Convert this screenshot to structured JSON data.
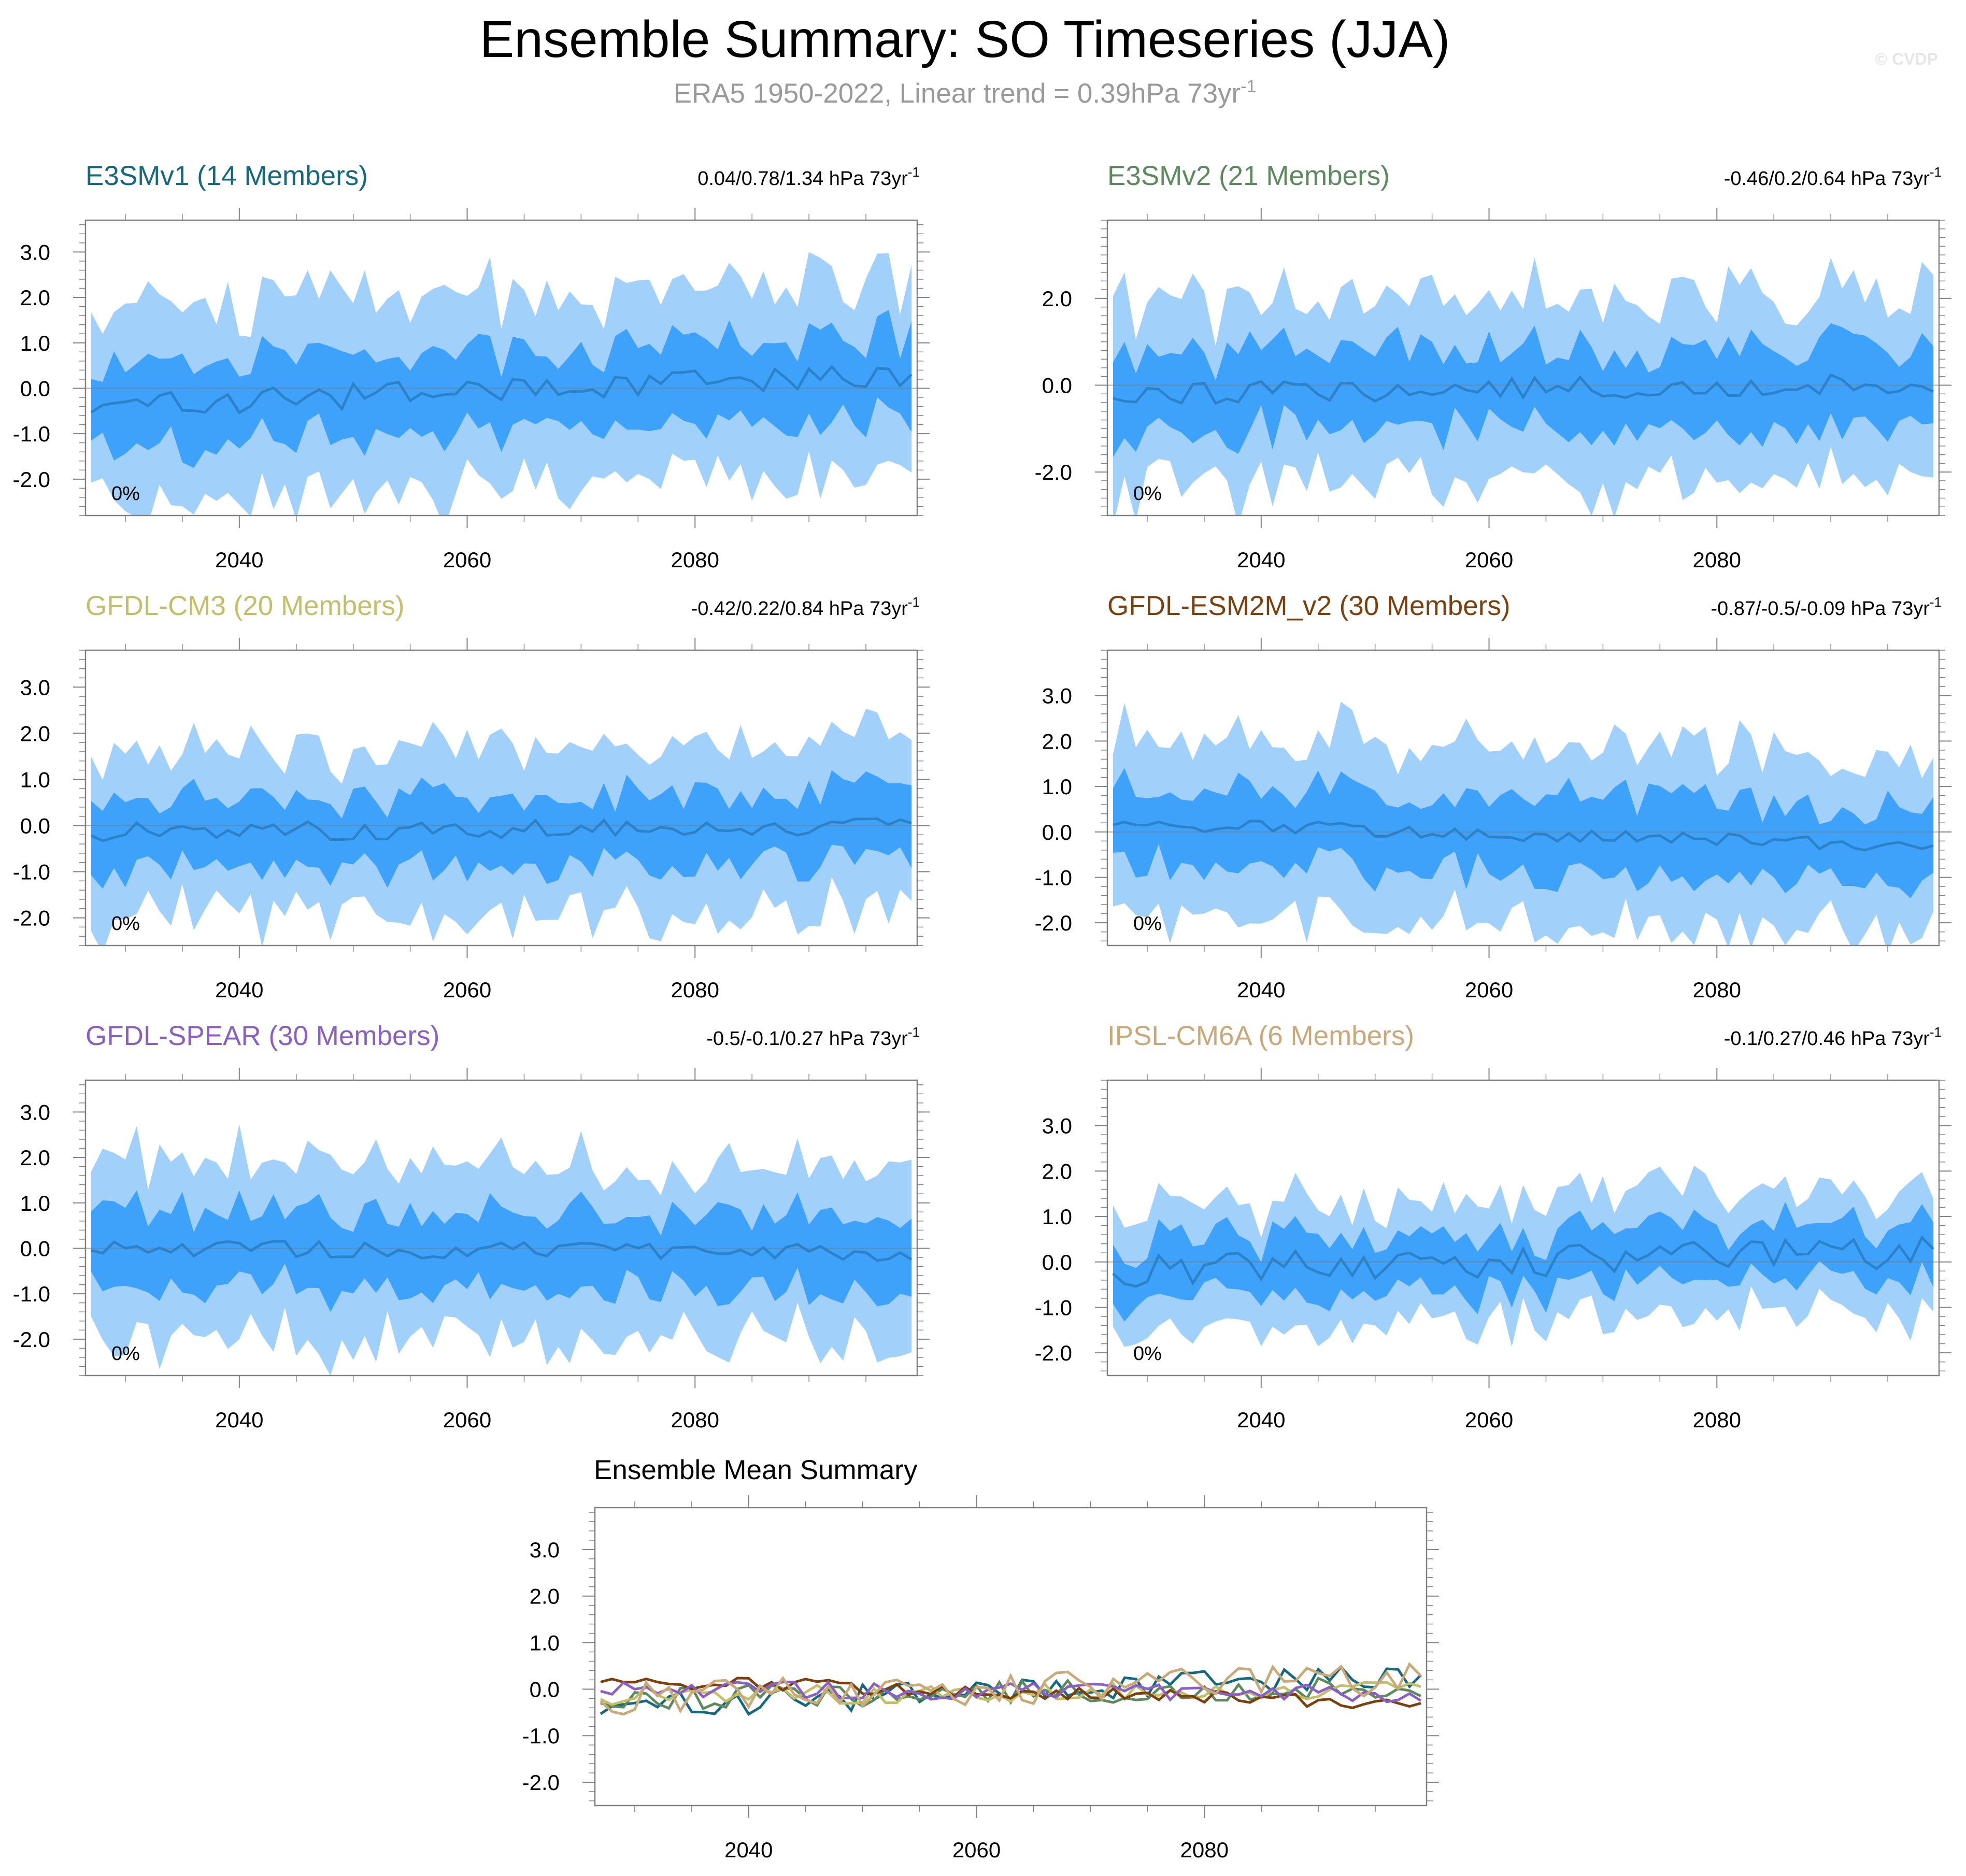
{
  "figure": {
    "title": "Ensemble Summary: SO Timeseries (JJA)",
    "subtitle_text": "ERA5 1950-2022, Linear trend = 0.39hPa 73yr",
    "subtitle_sup": "-1",
    "watermark": "© CVDP"
  },
  "colors": {
    "band_outer": "#a1d1fb",
    "band_inner": "#3ea2fb",
    "mean_line": "#2c82c9",
    "zero_line": "#7a7a7a",
    "axis": "#808080"
  },
  "chart_data": [
    {
      "type": "area",
      "title": "E3SMv1 (14 Members)",
      "title_color": "#15687d",
      "stat_text": "0.04/0.78/1.34 hPa 73yr",
      "stat_sup": "-1",
      "percent_label": "0%",
      "ylim": [
        -2.8,
        3.7
      ],
      "yticks": [
        3.0,
        2.0,
        1.0,
        0.0,
        -1.0,
        -2.0
      ],
      "ytick_labels": [
        "3.0",
        "2.0",
        "1.0",
        "0.0",
        "-1.0",
        "-2.0"
      ],
      "xlim": [
        2026.5,
        2099.5
      ],
      "xticks": [
        2040,
        2060,
        2080
      ],
      "xtick_labels": [
        "2040",
        "2060",
        "2080"
      ],
      "seed": 11,
      "amp_outer": 2.0,
      "amp_inner": 0.9,
      "mean_amp": 0.28,
      "trend": [
        -0.4,
        0.3
      ]
    },
    {
      "type": "area",
      "title": "E3SMv2 (21 Members)",
      "title_color": "#5c8a5e",
      "stat_text": "-0.46/0.2/0.64 hPa 73yr",
      "stat_sup": "-1",
      "percent_label": "0%",
      "ylim": [
        -3.0,
        3.8
      ],
      "yticks": [
        2.0,
        0.0,
        -2.0
      ],
      "ytick_labels": [
        "2.0",
        "0.0",
        "-2.0"
      ],
      "xlim": [
        2026.5,
        2099.5
      ],
      "xticks": [
        2040,
        2060,
        2080
      ],
      "xtick_labels": [
        "2040",
        "2060",
        "2080"
      ],
      "seed": 23,
      "amp_outer": 1.9,
      "amp_inner": 0.95,
      "mean_amp": 0.25,
      "trend": [
        -0.2,
        0.05
      ]
    },
    {
      "type": "area",
      "title": "GFDL-CM3 (20 Members)",
      "title_color": "#c2be6a",
      "stat_text": "-0.42/0.22/0.84 hPa 73yr",
      "stat_sup": "-1",
      "percent_label": "0%",
      "ylim": [
        -2.6,
        3.8
      ],
      "yticks": [
        3.0,
        2.0,
        1.0,
        0.0,
        -1.0,
        -2.0
      ],
      "ytick_labels": [
        "3.0",
        "2.0",
        "1.0",
        "0.0",
        "-1.0",
        "-2.0"
      ],
      "xlim": [
        2026.5,
        2099.5
      ],
      "xticks": [
        2040,
        2060,
        2080
      ],
      "xtick_labels": [
        "2040",
        "2060",
        "2080"
      ],
      "seed": 37,
      "amp_outer": 1.7,
      "amp_inner": 0.8,
      "mean_amp": 0.2,
      "trend": [
        -0.15,
        0.0
      ]
    },
    {
      "type": "area",
      "title": "GFDL-ESM2M_v2 (30 Members)",
      "title_color": "#7c3f0e",
      "stat_text": "-0.87/-0.5/-0.09 hPa 73yr",
      "stat_sup": "-1",
      "percent_label": "0%",
      "ylim": [
        -2.5,
        4.0
      ],
      "yticks": [
        3.0,
        2.0,
        1.0,
        0.0,
        -1.0,
        -2.0
      ],
      "ytick_labels": [
        "3.0",
        "2.0",
        "1.0",
        "0.0",
        "-1.0",
        "-2.0"
      ],
      "xlim": [
        2026.5,
        2099.5
      ],
      "xticks": [
        2040,
        2060,
        2080
      ],
      "xtick_labels": [
        "2040",
        "2060",
        "2080"
      ],
      "seed": 41,
      "amp_outer": 1.75,
      "amp_inner": 0.85,
      "mean_amp": 0.15,
      "trend": [
        0.2,
        -0.3
      ]
    },
    {
      "type": "area",
      "title": "GFDL-SPEAR (30 Members)",
      "title_color": "#8a5fc4",
      "stat_text": "-0.5/-0.1/0.27 hPa 73yr",
      "stat_sup": "-1",
      "percent_label": "0%",
      "ylim": [
        -2.8,
        3.7
      ],
      "yticks": [
        3.0,
        2.0,
        1.0,
        0.0,
        -1.0,
        -2.0
      ],
      "ytick_labels": [
        "3.0",
        "2.0",
        "1.0",
        "0.0",
        "-1.0",
        "-2.0"
      ],
      "xlim": [
        2026.5,
        2099.5
      ],
      "xticks": [
        2040,
        2060,
        2080
      ],
      "xtick_labels": [
        "2040",
        "2060",
        "2080"
      ],
      "seed": 53,
      "amp_outer": 1.75,
      "amp_inner": 0.85,
      "mean_amp": 0.18,
      "trend": [
        0.0,
        -0.1
      ]
    },
    {
      "type": "area",
      "title": "IPSL-CM6A (6 Members)",
      "title_color": "#c9a87a",
      "stat_text": "-0.1/0.27/0.46 hPa 73yr",
      "stat_sup": "-1",
      "percent_label": "0%",
      "ylim": [
        -2.5,
        4.0
      ],
      "yticks": [
        3.0,
        2.0,
        1.0,
        0.0,
        -1.0,
        -2.0
      ],
      "ytick_labels": [
        "3.0",
        "2.0",
        "1.0",
        "0.0",
        "-1.0",
        "-2.0"
      ],
      "xlim": [
        2026.5,
        2099.5
      ],
      "xticks": [
        2040,
        2060,
        2080
      ],
      "xtick_labels": [
        "2040",
        "2060",
        "2080"
      ],
      "seed": 67,
      "amp_outer": 1.15,
      "amp_inner": 0.6,
      "mean_amp": 0.35,
      "trend": [
        -0.2,
        0.2
      ]
    }
  ],
  "mean_chart": {
    "type": "line",
    "title": "Ensemble Mean Summary",
    "ylim": [
      -2.5,
      3.9
    ],
    "yticks": [
      3.0,
      2.0,
      1.0,
      0.0,
      -1.0,
      -2.0
    ],
    "ytick_labels": [
      "3.0",
      "2.0",
      "1.0",
      "0.0",
      "-1.0",
      "-2.0"
    ],
    "xlim": [
      2026.5,
      2099.5
    ],
    "xticks": [
      2040,
      2060,
      2080
    ],
    "xtick_labels": [
      "2040",
      "2060",
      "2080"
    ],
    "series": [
      {
        "name": "E3SMv1",
        "color": "#15687d",
        "seed": 11,
        "amp": 0.28,
        "trend": [
          -0.4,
          0.3
        ]
      },
      {
        "name": "E3SMv2",
        "color": "#5c8a5e",
        "seed": 23,
        "amp": 0.25,
        "trend": [
          -0.2,
          0.05
        ]
      },
      {
        "name": "GFDL-CM3",
        "color": "#c2be6a",
        "seed": 37,
        "amp": 0.2,
        "trend": [
          -0.15,
          0.0
        ]
      },
      {
        "name": "GFDL-ESM2M_v2",
        "color": "#7c3f0e",
        "seed": 41,
        "amp": 0.15,
        "trend": [
          0.2,
          -0.3
        ]
      },
      {
        "name": "GFDL-SPEAR",
        "color": "#8a5fc4",
        "seed": 53,
        "amp": 0.18,
        "trend": [
          0.0,
          -0.1
        ]
      },
      {
        "name": "IPSL-CM6A",
        "color": "#c9a87a",
        "seed": 67,
        "amp": 0.35,
        "trend": [
          -0.2,
          0.2
        ]
      }
    ]
  }
}
